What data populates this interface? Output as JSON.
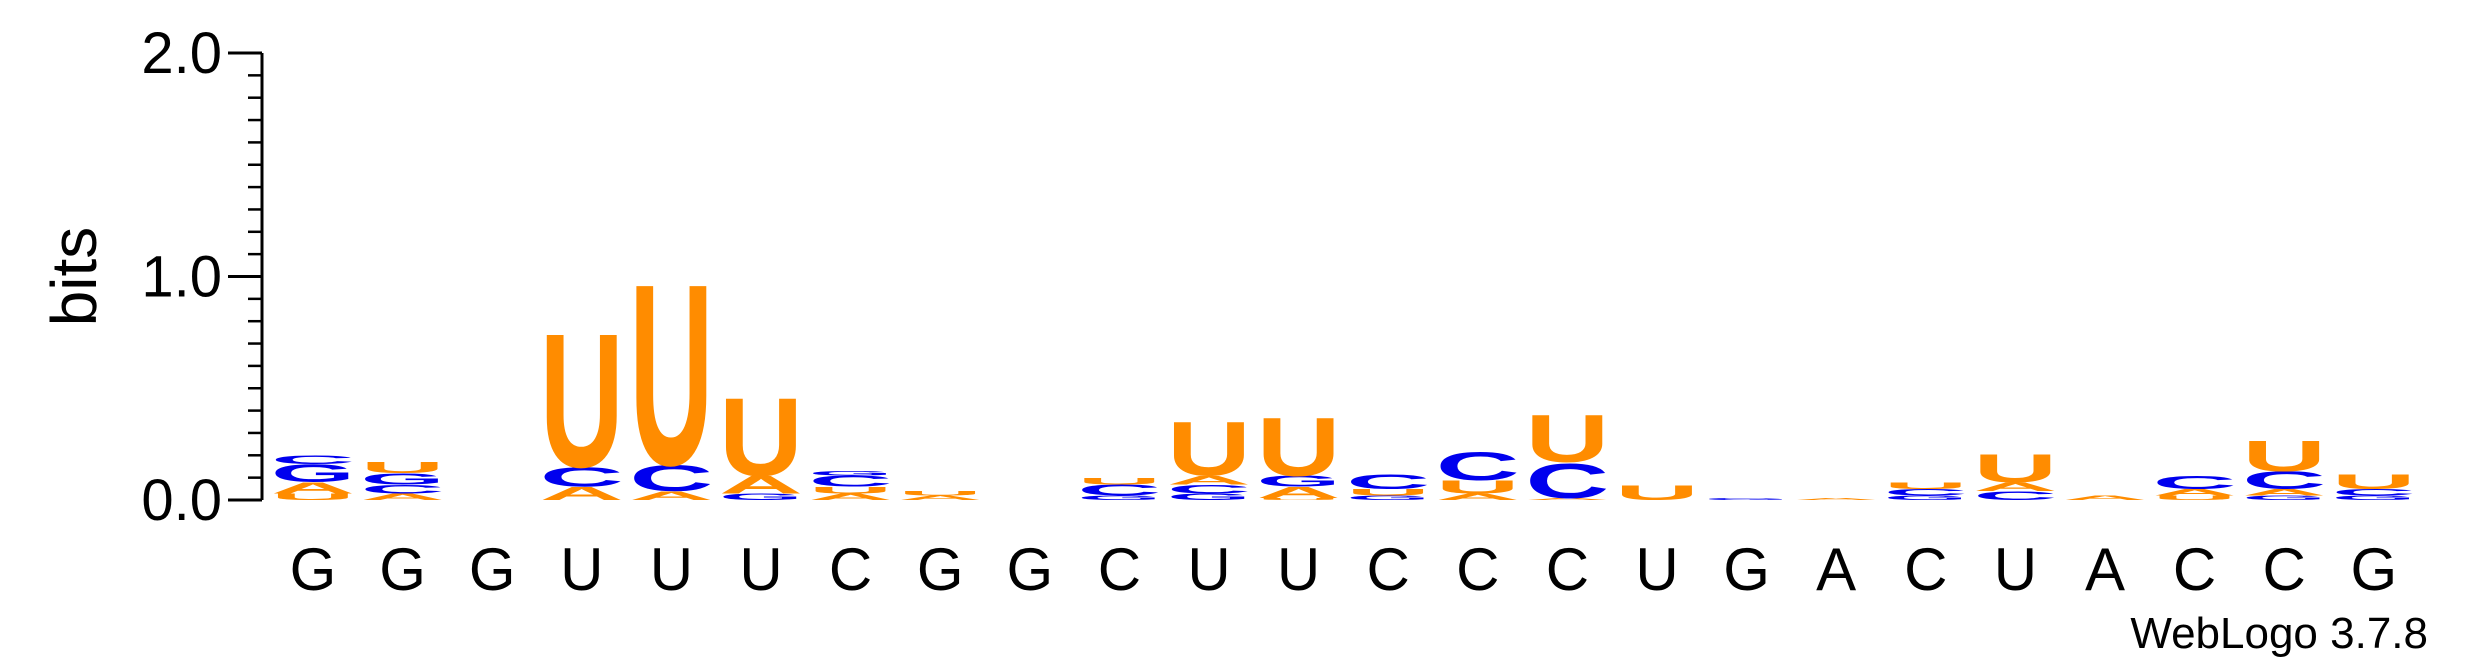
{
  "chart_data": {
    "type": "sequence-logo",
    "ylabel": "bits",
    "ylim": [
      0,
      2.0
    ],
    "y_ticks": [
      {
        "value": 0.0,
        "label": "0.0"
      },
      {
        "value": 1.0,
        "label": "1.0"
      },
      {
        "value": 2.0,
        "label": "2.0"
      }
    ],
    "y_minor_step": 0.1,
    "x_tick_labels": [
      "G",
      "G",
      "G",
      "U",
      "U",
      "U",
      "C",
      "G",
      "G",
      "C",
      "U",
      "U",
      "C",
      "C",
      "C",
      "U",
      "G",
      "A",
      "C",
      "U",
      "A",
      "C",
      "C",
      "G"
    ],
    "colors": {
      "A": "#ff8c00",
      "U": "#ff8c00",
      "G": "#0000ee",
      "C": "#0000ee"
    },
    "stacks": [
      [
        [
          "U",
          0.03
        ],
        [
          "A",
          0.05
        ],
        [
          "G",
          0.08
        ],
        [
          "C",
          0.04
        ]
      ],
      [
        [
          "A",
          0.03
        ],
        [
          "C",
          0.04
        ],
        [
          "G",
          0.05
        ],
        [
          "U",
          0.05
        ]
      ],
      [],
      [
        [
          "A",
          0.06
        ],
        [
          "C",
          0.09
        ],
        [
          "U",
          0.62
        ]
      ],
      [
        [
          "A",
          0.04
        ],
        [
          "C",
          0.12
        ],
        [
          "U",
          0.84
        ]
      ],
      [
        [
          "G",
          0.03
        ],
        [
          "A",
          0.08
        ],
        [
          "U",
          0.36
        ]
      ],
      [
        [
          "A",
          0.03
        ],
        [
          "U",
          0.03
        ],
        [
          "C",
          0.05
        ],
        [
          "G",
          0.02
        ]
      ],
      [
        [
          "A",
          0.02
        ],
        [
          "U",
          0.02
        ]
      ],
      [],
      [
        [
          "G",
          0.02
        ],
        [
          "C",
          0.05
        ],
        [
          "U",
          0.03
        ]
      ],
      [
        [
          "G",
          0.03
        ],
        [
          "C",
          0.04
        ],
        [
          "A",
          0.04
        ],
        [
          "U",
          0.25
        ]
      ],
      [
        [
          "U",
          0.01
        ],
        [
          "A",
          0.05
        ],
        [
          "G",
          0.05
        ],
        [
          "U",
          0.27
        ]
      ],
      [
        [
          "G",
          0.02
        ],
        [
          "U",
          0.03
        ],
        [
          "C",
          0.07
        ]
      ],
      [
        [
          "A",
          0.03
        ],
        [
          "U",
          0.06
        ],
        [
          "C",
          0.13
        ]
      ],
      [
        [
          "A",
          0.01
        ],
        [
          "C",
          0.16
        ],
        [
          "U",
          0.22
        ]
      ],
      [
        [
          "U",
          0.07
        ]
      ],
      [
        [
          "G",
          0.01
        ]
      ],
      [
        [
          "A",
          0.01
        ]
      ],
      [
        [
          "G",
          0.02
        ],
        [
          "C",
          0.03
        ],
        [
          "U",
          0.03
        ]
      ],
      [
        [
          "C",
          0.04
        ],
        [
          "A",
          0.04
        ],
        [
          "U",
          0.13
        ]
      ],
      [
        [
          "A",
          0.02
        ]
      ],
      [
        [
          "U",
          0.02
        ],
        [
          "A",
          0.03
        ],
        [
          "C",
          0.06
        ]
      ],
      [
        [
          "G",
          0.02
        ],
        [
          "A",
          0.03
        ],
        [
          "C",
          0.08
        ],
        [
          "U",
          0.14
        ]
      ],
      [
        [
          "G",
          0.02
        ],
        [
          "C",
          0.03
        ],
        [
          "U",
          0.07
        ]
      ]
    ],
    "credit": "WebLogo 3.7.8"
  }
}
